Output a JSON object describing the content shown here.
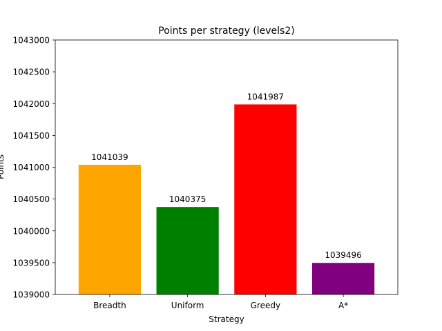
{
  "chart_data": {
    "type": "bar",
    "title": "Points per strategy (levels2)",
    "xlabel": "Strategy",
    "ylabel": "Points",
    "categories": [
      "Breadth",
      "Uniform",
      "Greedy",
      "A*"
    ],
    "values": [
      1041039,
      1040375,
      1041987,
      1039496
    ],
    "data_labels": [
      "1041039",
      "1040375",
      "1041987",
      "1039496"
    ],
    "colors": [
      "#ffa500",
      "#008000",
      "#ff0000",
      "#800080"
    ],
    "ylim": [
      1039000,
      1043000
    ],
    "yticks": [
      1039000,
      1039500,
      1040000,
      1040500,
      1041000,
      1041500,
      1042000,
      1042500,
      1043000
    ],
    "grid": false,
    "legend": "none"
  }
}
